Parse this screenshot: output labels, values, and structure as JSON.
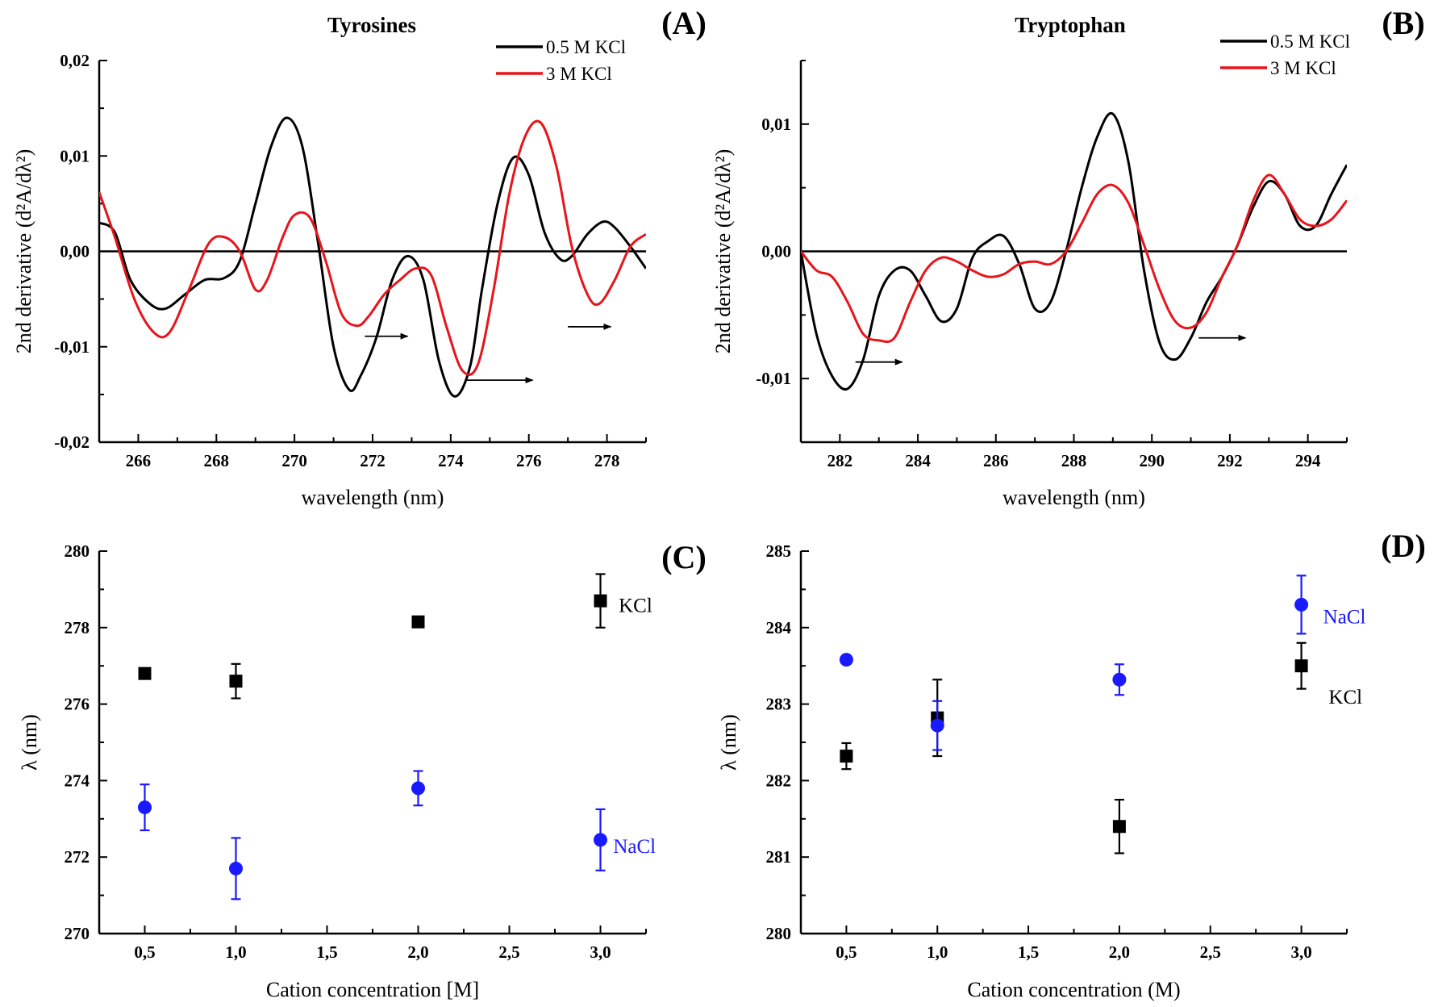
{
  "chart_data": [
    {
      "panel": "A",
      "type": "line",
      "title": "Tyrosines",
      "letter": "(A)",
      "xlabel": "wavelength (nm)",
      "ylabel": "2nd derivative (d²A/dλ²)",
      "xlim": [
        265,
        279
      ],
      "ylim": [
        -0.02,
        0.02
      ],
      "xticks": [
        266,
        268,
        270,
        272,
        274,
        276,
        278
      ],
      "xtick_labels": [
        "266",
        "268",
        "270",
        "272",
        "274",
        "276",
        "278"
      ],
      "yticks": [
        -0.02,
        -0.01,
        0,
        0.01,
        0.02
      ],
      "ytick_labels": [
        "-0,02",
        "-0,01",
        "0,00",
        "0,01",
        "0,02"
      ],
      "zero_line": true,
      "legend_position": "top-right",
      "series": [
        {
          "name": "0.5 M KCl",
          "color": "#000000",
          "x": [
            265,
            265.4,
            265.8,
            266.3,
            266.7,
            267.2,
            267.7,
            268.2,
            268.6,
            269.0,
            269.4,
            269.8,
            270.2,
            270.6,
            271.0,
            271.4,
            271.7,
            272.1,
            272.5,
            272.9,
            273.3,
            273.7,
            274.1,
            274.5,
            274.8,
            275.2,
            275.6,
            276.0,
            276.4,
            276.8,
            277.1,
            277.5,
            277.9,
            278.2,
            278.6,
            279
          ],
          "y": [
            0.003,
            0.002,
            -0.003,
            -0.0055,
            -0.006,
            -0.0045,
            -0.003,
            -0.0028,
            -0.001,
            0.005,
            0.011,
            0.014,
            0.011,
            0.001,
            -0.01,
            -0.0145,
            -0.013,
            -0.009,
            -0.003,
            -0.0005,
            -0.003,
            -0.0115,
            -0.0152,
            -0.012,
            -0.004,
            0.005,
            0.0098,
            0.008,
            0.002,
            -0.0008,
            -0.0005,
            0.0018,
            0.0031,
            0.0025,
            0.0005,
            -0.0018
          ]
        },
        {
          "name": "3 M KCl",
          "color": "#e8141b",
          "x": [
            265,
            265.4,
            265.9,
            266.4,
            266.8,
            267.3,
            267.8,
            268.2,
            268.6,
            269.0,
            269.3,
            269.7,
            270.0,
            270.4,
            270.8,
            271.2,
            271.6,
            271.9,
            272.3,
            272.7,
            273.1,
            273.5,
            273.9,
            274.3,
            274.7,
            275.1,
            275.5,
            275.9,
            276.3,
            276.7,
            277.1,
            277.5,
            277.8,
            278.2,
            278.6,
            279
          ],
          "y": [
            0.0062,
            0.0015,
            -0.005,
            -0.0085,
            -0.0085,
            -0.004,
            0.0008,
            0.0015,
            0.0,
            -0.004,
            -0.003,
            0.0015,
            0.0038,
            0.0035,
            -0.001,
            -0.0065,
            -0.0078,
            -0.0068,
            -0.0045,
            -0.003,
            -0.0018,
            -0.0025,
            -0.008,
            -0.0125,
            -0.0118,
            -0.004,
            0.006,
            0.012,
            0.0135,
            0.009,
            0.0005,
            -0.0045,
            -0.0055,
            -0.003,
            0.0005,
            0.0018
          ]
        }
      ],
      "arrows": [
        {
          "x1": 271.8,
          "y1": -0.0089,
          "x2": 272.9,
          "y2": -0.0089
        },
        {
          "x1": 274.4,
          "y1": -0.0135,
          "x2": 276.1,
          "y2": -0.0135
        },
        {
          "x1": 277.0,
          "y1": -0.0079,
          "x2": 278.1,
          "y2": -0.0079
        }
      ]
    },
    {
      "panel": "B",
      "type": "line",
      "title": "Tryptophan",
      "letter": "(B)",
      "xlabel": "wavelength (nm)",
      "ylabel": "2nd derivative (d²A/dλ²)",
      "xlim": [
        281,
        295
      ],
      "ylim": [
        -0.015,
        0.015
      ],
      "xticks": [
        282,
        284,
        286,
        288,
        290,
        292,
        294
      ],
      "xtick_labels": [
        "282",
        "284",
        "286",
        "288",
        "290",
        "292",
        "294"
      ],
      "yticks": [
        -0.01,
        0,
        0.01
      ],
      "ytick_labels": [
        "-0,01",
        "0,00",
        "0,01"
      ],
      "zero_line": true,
      "legend_position": "top-right",
      "series": [
        {
          "name": "0.5 M KCl",
          "color": "#000000",
          "x": [
            281,
            281.4,
            281.8,
            282.2,
            282.6,
            283.0,
            283.4,
            283.8,
            284.2,
            284.6,
            285.0,
            285.4,
            285.8,
            286.2,
            286.6,
            287.0,
            287.4,
            287.8,
            288.2,
            288.6,
            289.0,
            289.4,
            289.8,
            290.2,
            290.6,
            291.0,
            291.4,
            291.8,
            292.2,
            292.6,
            293.0,
            293.4,
            293.8,
            294.2,
            294.6,
            295
          ],
          "y": [
            0.0,
            -0.0065,
            -0.0098,
            -0.0108,
            -0.0085,
            -0.0035,
            -0.0015,
            -0.0015,
            -0.0035,
            -0.0055,
            -0.0045,
            -0.0005,
            0.0008,
            0.0012,
            -0.001,
            -0.0045,
            -0.004,
            0.0,
            0.005,
            0.009,
            0.0108,
            0.007,
            -0.0015,
            -0.0072,
            -0.0085,
            -0.0068,
            -0.004,
            -0.002,
            0.0005,
            0.0035,
            0.0055,
            0.0045,
            0.002,
            0.002,
            0.0045,
            0.0068
          ]
        },
        {
          "name": "3 M KCl",
          "color": "#e8141b",
          "x": [
            281,
            281.4,
            281.8,
            282.2,
            282.6,
            283.0,
            283.4,
            283.8,
            284.2,
            284.6,
            285.0,
            285.4,
            285.8,
            286.2,
            286.6,
            287.0,
            287.4,
            287.8,
            288.2,
            288.6,
            289.0,
            289.4,
            289.8,
            290.2,
            290.6,
            291.0,
            291.4,
            291.8,
            292.2,
            292.6,
            293.0,
            293.4,
            293.8,
            294.2,
            294.6,
            295
          ],
          "y": [
            0.0,
            -0.0015,
            -0.002,
            -0.004,
            -0.0065,
            -0.007,
            -0.0068,
            -0.004,
            -0.0015,
            -0.0005,
            -0.0008,
            -0.0015,
            -0.002,
            -0.0018,
            -0.001,
            -0.0008,
            -0.001,
            0.0,
            0.0022,
            0.0045,
            0.0052,
            0.0038,
            0.0005,
            -0.003,
            -0.0055,
            -0.006,
            -0.0048,
            -0.002,
            0.0005,
            0.004,
            0.006,
            0.0045,
            0.0025,
            0.002,
            0.0025,
            0.004
          ]
        }
      ],
      "arrows": [
        {
          "x1": 282.4,
          "y1": -0.0087,
          "x2": 283.6,
          "y2": -0.0087
        },
        {
          "x1": 291.2,
          "y1": -0.0068,
          "x2": 292.4,
          "y2": -0.0068
        }
      ]
    },
    {
      "panel": "C",
      "type": "scatter",
      "title": "",
      "letter": "(C)",
      "xlabel": "Cation concentration [M]",
      "ylabel": "λ (nm)",
      "xlim": [
        0.25,
        3.25
      ],
      "ylim": [
        270,
        280
      ],
      "xticks": [
        0.5,
        1.0,
        1.5,
        2.0,
        2.5,
        3.0
      ],
      "xtick_labels": [
        "0,5",
        "1,0",
        "1,5",
        "2,0",
        "2,5",
        "3,0"
      ],
      "yticks": [
        270,
        272,
        274,
        276,
        278,
        280
      ],
      "ytick_labels": [
        "270",
        "272",
        "274",
        "276",
        "278",
        "280"
      ],
      "series": [
        {
          "name": "KCl",
          "marker": "square",
          "color": "#000000",
          "x": [
            0.5,
            1.0,
            2.0,
            3.0
          ],
          "y": [
            276.8,
            276.6,
            278.15,
            278.7
          ],
          "err": [
            0.08,
            0.45,
            0.08,
            0.7
          ],
          "label_pos": {
            "x": 3.1,
            "y": 278.6
          }
        },
        {
          "name": "NaCl",
          "marker": "circle",
          "color": "#1a1aff",
          "x": [
            0.5,
            1.0,
            2.0,
            3.0
          ],
          "y": [
            273.3,
            271.7,
            273.8,
            272.45
          ],
          "err": [
            0.6,
            0.8,
            0.45,
            0.8
          ],
          "label_pos": {
            "x": 3.07,
            "y": 272.3
          }
        }
      ]
    },
    {
      "panel": "D",
      "type": "scatter",
      "title": "",
      "letter": "(D)",
      "xlabel": "Cation concentration (M)",
      "ylabel": "λ (nm)",
      "xlim": [
        0.25,
        3.25
      ],
      "ylim": [
        280,
        285
      ],
      "xticks": [
        0.5,
        1.0,
        1.5,
        2.0,
        2.5,
        3.0
      ],
      "xtick_labels": [
        "0,5",
        "1,0",
        "1,5",
        "2,0",
        "2,5",
        "3,0"
      ],
      "yticks": [
        280,
        281,
        282,
        283,
        284,
        285
      ],
      "ytick_labels": [
        "280",
        "281",
        "282",
        "283",
        "284",
        "285"
      ],
      "series": [
        {
          "name": "KCl",
          "marker": "square",
          "color": "#000000",
          "x": [
            0.5,
            1.0,
            2.0,
            3.0
          ],
          "y": [
            282.32,
            282.82,
            281.4,
            283.5
          ],
          "err": [
            0.17,
            0.5,
            0.35,
            0.3
          ],
          "label_pos": {
            "x": 3.15,
            "y": 283.1
          }
        },
        {
          "name": "NaCl",
          "marker": "circle",
          "color": "#1a1aff",
          "x": [
            0.5,
            1.0,
            2.0,
            3.0
          ],
          "y": [
            283.58,
            282.72,
            283.32,
            284.3
          ],
          "err": [
            0.0,
            0.32,
            0.2,
            0.38
          ],
          "label_pos": {
            "x": 3.12,
            "y": 284.15
          }
        }
      ]
    }
  ]
}
